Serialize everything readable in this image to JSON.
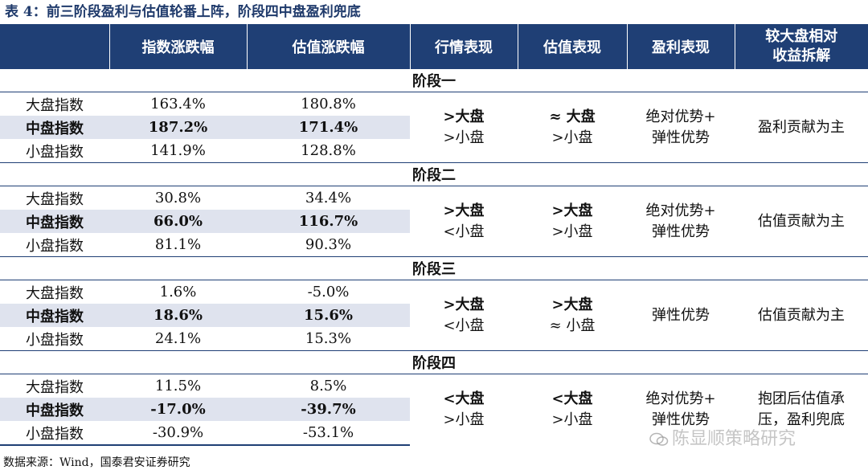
{
  "title": "表 4：前三阶段盈利与估值轮番上阵，阶段四中盘盈利兜底",
  "header": {
    "col0": "",
    "col1": "指数涨跌幅",
    "col2": "估值涨跌幅",
    "col3": "行情表现",
    "col4": "估值表现",
    "col5": "盈利表现",
    "col6_l1": "较大盘相对",
    "col6_l2": "收益拆解"
  },
  "stages": [
    {
      "name": "阶段一",
      "rows": [
        {
          "index": "大盘指数",
          "chg": "163.4%",
          "val": "180.8%"
        },
        {
          "index": "中盘指数",
          "chg": "187.2%",
          "val": "171.4%"
        },
        {
          "index": "小盘指数",
          "chg": "141.9%",
          "val": "128.8%"
        }
      ],
      "market_l1": ">大盘",
      "market_l2": ">小盘",
      "valuation_l1": "≈ 大盘",
      "valuation_l2": ">小盘",
      "profit_l1": "绝对优势+",
      "profit_l2": "弹性优势",
      "relative_l1": "盈利贡献为主",
      "relative_l2": ""
    },
    {
      "name": "阶段二",
      "rows": [
        {
          "index": "大盘指数",
          "chg": "30.8%",
          "val": "34.4%"
        },
        {
          "index": "中盘指数",
          "chg": "66.0%",
          "val": "116.7%"
        },
        {
          "index": "小盘指数",
          "chg": "81.1%",
          "val": "90.3%"
        }
      ],
      "market_l1": ">大盘",
      "market_l2": "<小盘",
      "valuation_l1": ">大盘",
      "valuation_l2": ">小盘",
      "profit_l1": "绝对优势+",
      "profit_l2": "弹性优势",
      "relative_l1": "估值贡献为主",
      "relative_l2": ""
    },
    {
      "name": "阶段三",
      "rows": [
        {
          "index": "大盘指数",
          "chg": "1.6%",
          "val": "-5.0%"
        },
        {
          "index": "中盘指数",
          "chg": "18.6%",
          "val": "15.6%"
        },
        {
          "index": "小盘指数",
          "chg": "24.1%",
          "val": "15.3%"
        }
      ],
      "market_l1": ">大盘",
      "market_l2": "<小盘",
      "valuation_l1": ">大盘",
      "valuation_l2": "≈ 小盘",
      "profit_l1": "弹性优势",
      "profit_l2": "",
      "relative_l1": "估值贡献为主",
      "relative_l2": ""
    },
    {
      "name": "阶段四",
      "rows": [
        {
          "index": "大盘指数",
          "chg": "11.5%",
          "val": "8.5%"
        },
        {
          "index": "中盘指数",
          "chg": "-17.0%",
          "val": "-39.7%"
        },
        {
          "index": "小盘指数",
          "chg": "-30.9%",
          "val": "-53.1%"
        }
      ],
      "market_l1": "<大盘",
      "market_l2": ">小盘",
      "valuation_l1": "<大盘",
      "valuation_l2": ">小盘",
      "profit_l1": "绝对优势+",
      "profit_l2": "弹性优势",
      "relative_l1": "抱团后估值承",
      "relative_l2": "压，盈利兜底"
    }
  ],
  "source": "数据来源：Wind，国泰君安证券研究",
  "watermark": "陈显顺策略研究"
}
